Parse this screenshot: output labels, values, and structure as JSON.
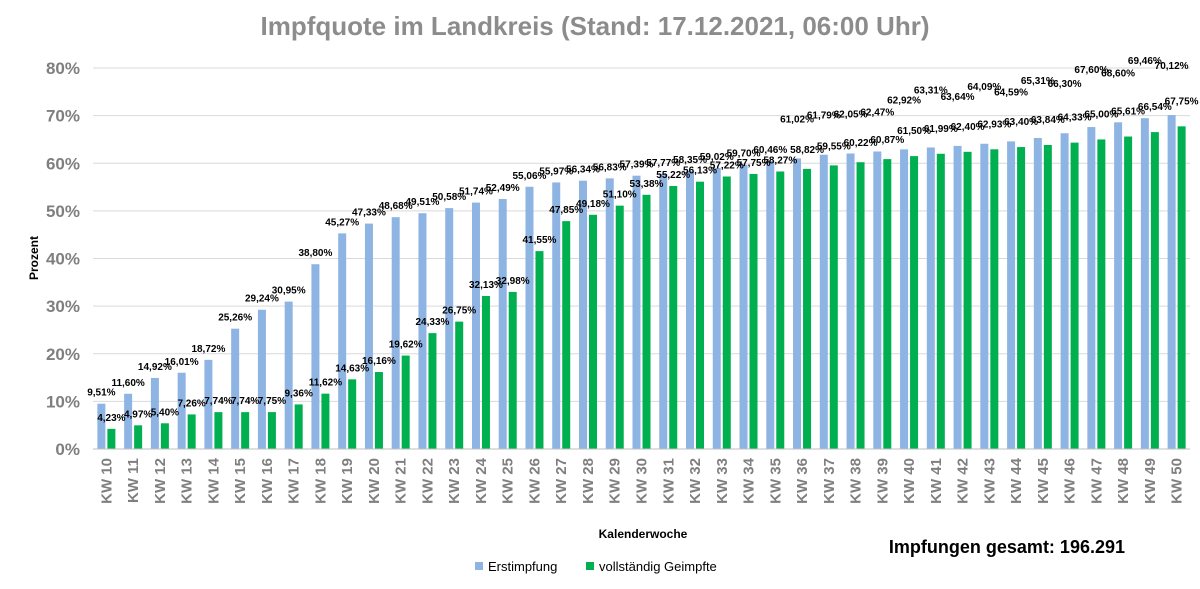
{
  "chart_data": {
    "type": "bar",
    "title": "Impfquote im Landkreis (Stand: 17.12.2021, 06:00 Uhr)",
    "xlabel": "Kalenderwoche",
    "ylabel": "Prozent",
    "ylim": [
      0,
      80
    ],
    "yticks": [
      "0%",
      "10%",
      "20%",
      "30%",
      "40%",
      "50%",
      "60%",
      "70%",
      "80%"
    ],
    "grid": true,
    "legend_position": "bottom",
    "categories": [
      "KW 10",
      "KW 11",
      "KW 12",
      "KW 13",
      "KW 14",
      "KW 15",
      "KW 16",
      "KW 17",
      "KW 18",
      "KW 19",
      "KW 20",
      "KW 21",
      "KW 22",
      "KW 23",
      "KW 24",
      "KW 25",
      "KW 26",
      "KW 27",
      "KW 28",
      "KW 29",
      "KW 30",
      "KW 31",
      "KW 32",
      "KW 33",
      "KW 34",
      "KW 35",
      "KW 36",
      "KW 37",
      "KW 38",
      "KW 39",
      "KW 40",
      "KW 41",
      "KW 42",
      "KW 43",
      "KW 44",
      "KW 45",
      "KW 46",
      "KW 47",
      "KW 48",
      "KW 49",
      "KW 50"
    ],
    "series": [
      {
        "name": "Erstimpfung",
        "color": "#8eb4e3",
        "values": [
          9.51,
          11.6,
          14.92,
          16.01,
          18.72,
          25.26,
          29.24,
          30.95,
          38.8,
          45.27,
          47.33,
          48.68,
          49.51,
          50.58,
          51.74,
          52.49,
          55.06,
          55.97,
          56.34,
          56.83,
          57.39,
          57.77,
          58.35,
          59.02,
          59.7,
          60.46,
          61.02,
          61.79,
          62.05,
          62.47,
          62.92,
          63.31,
          63.64,
          64.09,
          64.59,
          65.31,
          66.3,
          67.6,
          68.6,
          69.46,
          70.12
        ],
        "labels": [
          "9,51%",
          "11,60%",
          "14,92%",
          "16,01%",
          "18,72%",
          "25,26%",
          "29,24%",
          "30,95%",
          "38,80%",
          "45,27%",
          "47,33%",
          "48,68%",
          "49,51%",
          "50,58%",
          "51,74%",
          "52,49%",
          "55,06%",
          "55,97%",
          "56,34%",
          "56,83%",
          "57,39%",
          "57,77%",
          "58,35%",
          "59,02%",
          "59,70%",
          "60,46%",
          "61,02%",
          "61,79%",
          "62,05%",
          "62,47%",
          "62,92%",
          "63,31%",
          "63,64%",
          "64,09%",
          "64,59%",
          "65,31%",
          "66,30%",
          "67,60%",
          "68,60%",
          "69,46%",
          "70,12%"
        ]
      },
      {
        "name": "vollständig Geimpfte",
        "color": "#00b050",
        "values": [
          4.23,
          4.97,
          5.4,
          7.26,
          7.74,
          7.74,
          7.75,
          9.36,
          11.62,
          14.63,
          16.16,
          19.62,
          24.33,
          26.75,
          32.13,
          32.98,
          41.55,
          47.85,
          49.18,
          51.1,
          53.38,
          55.22,
          56.13,
          57.22,
          57.75,
          58.27,
          58.82,
          59.55,
          60.22,
          60.87,
          61.5,
          61.99,
          62.4,
          62.93,
          63.4,
          63.84,
          64.33,
          65.0,
          65.61,
          66.54,
          67.75
        ],
        "labels": [
          "4,23%",
          "4,97%",
          "5,40%",
          "7,26%",
          "7,74%",
          "7,74%",
          "7,75%",
          "9,36%",
          "11,62%",
          "14,63%",
          "16,16%",
          "19,62%",
          "24,33%",
          "26,75%",
          "32,13%",
          "32,98%",
          "41,55%",
          "47,85%",
          "49,18%",
          "51,10%",
          "53,38%",
          "55,22%",
          "56,13%",
          "57,22%",
          "57,75%",
          "58,27%",
          "58,82%",
          "59,55%",
          "60,22%",
          "60,87%",
          "61,50%",
          "61,99%",
          "62,40%",
          "62,93%",
          "63,40%",
          "63,84%",
          "64,33%",
          "65,00%",
          "65,61%",
          "66,54%",
          "67,75%"
        ]
      }
    ],
    "annotation": "Impfungen gesamt: 196.291"
  }
}
